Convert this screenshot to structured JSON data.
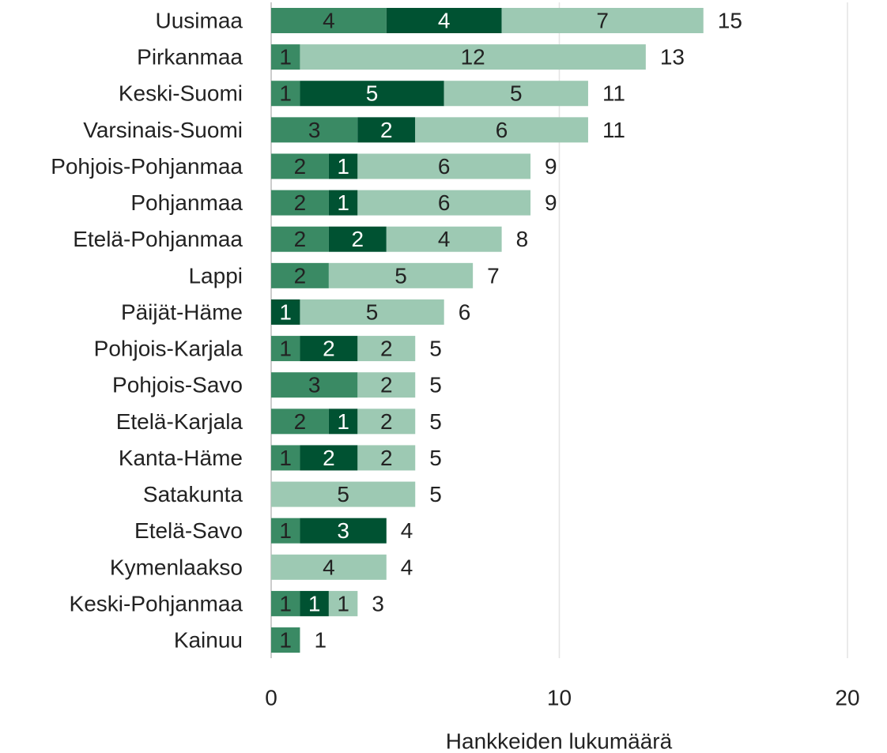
{
  "chart_data": {
    "type": "stacked-barh",
    "xlabel": "Hankkeiden lukumäärä",
    "categories": [
      "Uusimaa",
      "Pirkanmaa",
      "Keski-Suomi",
      "Varsinais-Suomi",
      "Pohjois-Pohjanmaa",
      "Pohjanmaa",
      "Etelä-Pohjanmaa",
      "Lappi",
      "Päijät-Häme",
      "Pohjois-Karjala",
      "Pohjois-Savo",
      "Etelä-Karjala",
      "Kanta-Häme",
      "Satakunta",
      "Etelä-Savo",
      "Kymenlaakso",
      "Keski-Pohjanmaa",
      "Kainuu"
    ],
    "series": [
      {
        "color": "#3a8a64",
        "label_color": "#222222",
        "values": [
          4,
          1,
          1,
          3,
          2,
          2,
          2,
          2,
          null,
          1,
          3,
          2,
          1,
          null,
          1,
          null,
          1,
          1
        ]
      },
      {
        "color": "#005232",
        "label_color": "#ffffff",
        "values": [
          4,
          null,
          5,
          2,
          1,
          1,
          2,
          null,
          1,
          2,
          null,
          1,
          2,
          null,
          3,
          null,
          1,
          null
        ]
      },
      {
        "color": "#9dc9b3",
        "label_color": "#222222",
        "values": [
          7,
          12,
          5,
          6,
          6,
          6,
          4,
          5,
          5,
          2,
          2,
          2,
          2,
          5,
          null,
          4,
          1,
          null
        ]
      }
    ],
    "totals": [
      15,
      13,
      11,
      11,
      9,
      9,
      8,
      7,
      6,
      5,
      5,
      5,
      5,
      5,
      4,
      4,
      3,
      1
    ],
    "xlim": [
      0,
      20
    ],
    "xticks": [
      0,
      10,
      20
    ],
    "grid": true
  }
}
